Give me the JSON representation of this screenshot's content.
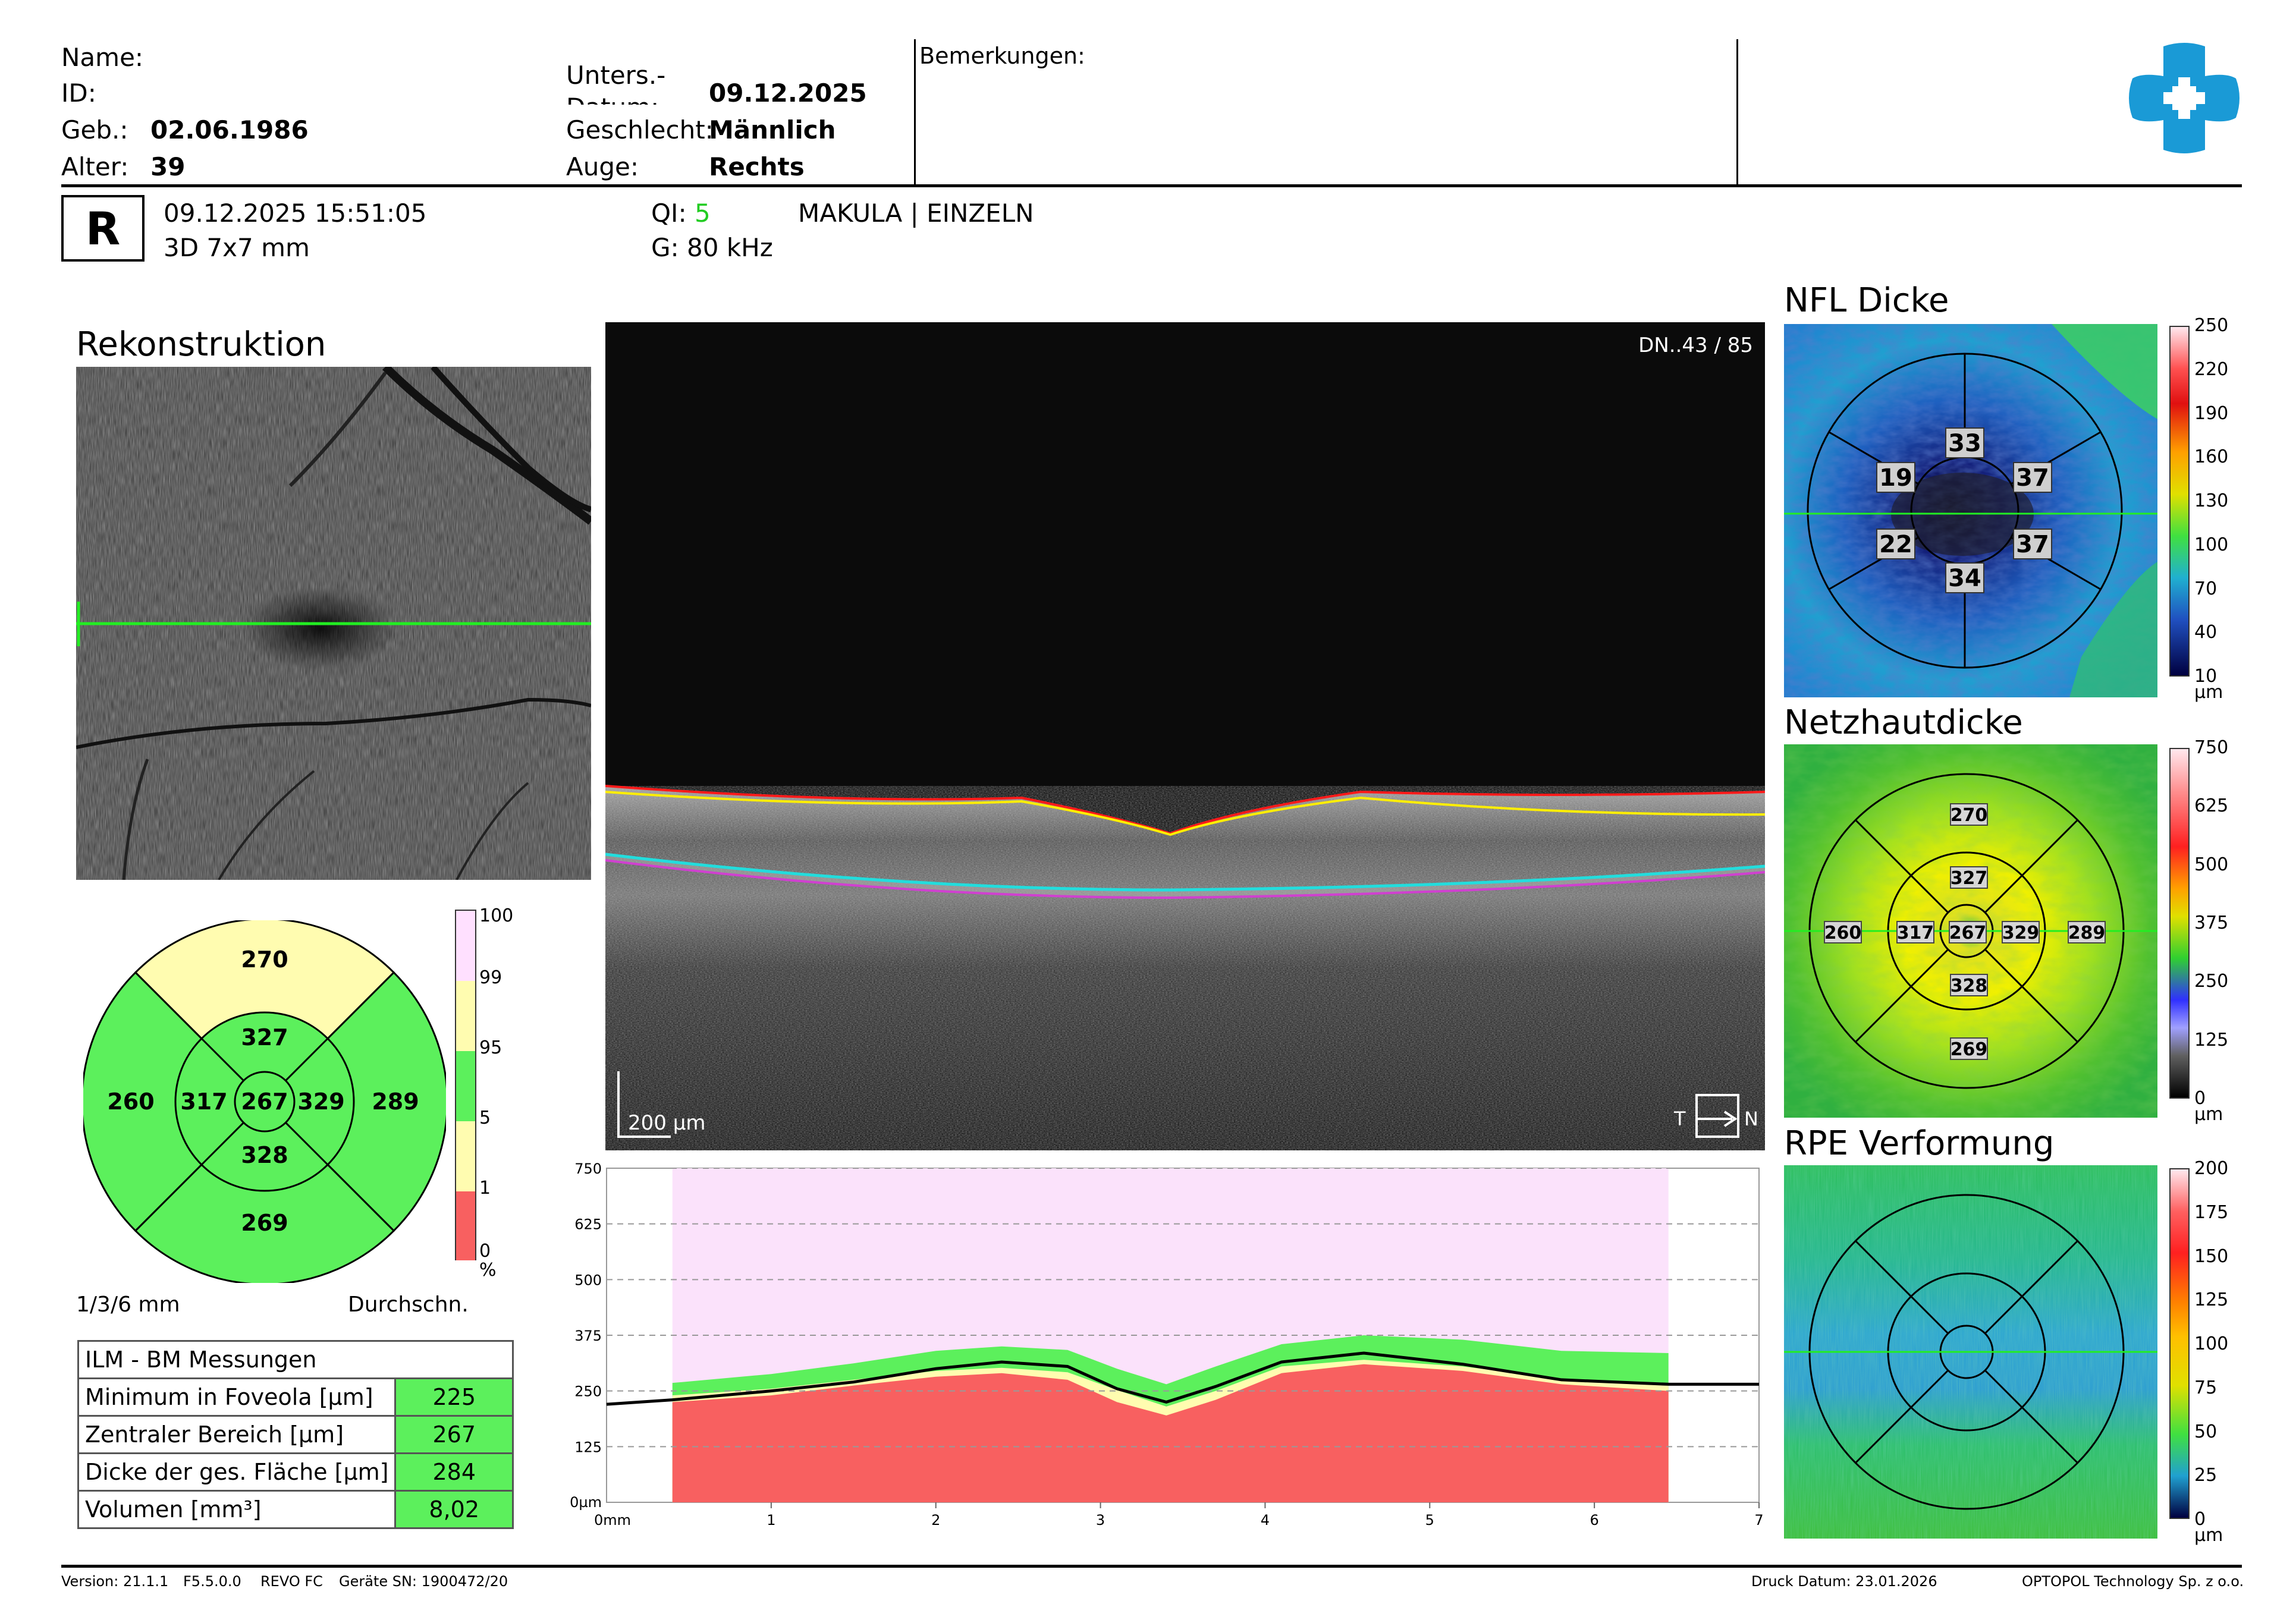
{
  "header": {
    "name_label": "Name:",
    "id_label": "ID:",
    "dob_label": "Geb.:",
    "dob_value": "02.06.1986",
    "age_label": "Alter:",
    "age_value": "39",
    "exam_label_line1": "Unters.-",
    "exam_label_line2": "Datum:",
    "exam_value": "09.12.2025",
    "sex_label": "Geschlecht:",
    "sex_value": "Männlich",
    "eye_label": "Auge:",
    "eye_value": "Rechts",
    "remarks_label": "Bemerkungen:"
  },
  "scan_info": {
    "eye_badge": "R",
    "datetime": "09.12.2025 15:51:05",
    "scan_type": "3D 7x7 mm",
    "qi_label": "QI:",
    "qi_value": "5",
    "g_value": "G: 80 kHz",
    "protocol": "MAKULA | EINZELN"
  },
  "reconstruction": {
    "title": "Rekonstruktion"
  },
  "bscan": {
    "frame_label": "DN..43 / 85",
    "scale_label": "200 µm",
    "t_label": "T",
    "n_label": "N"
  },
  "etdrs_chart": {
    "superior_outer": "270",
    "superior_inner": "327",
    "temporal_outer": "260",
    "temporal_inner": "317",
    "center": "267",
    "nasal_inner": "329",
    "nasal_outer": "289",
    "inferior_inner": "328",
    "inferior_outer": "269",
    "legend_ticks": [
      "100",
      "99",
      "95",
      "5",
      "1",
      "0"
    ],
    "legend_unit": "%",
    "diameter_label": "1/3/6 mm",
    "mode_label": "Durchschn.",
    "colors": {
      "green": "#5cf05c",
      "yellow": "#fffcb0",
      "red": "#f86060",
      "pink": "#ffe0ff"
    }
  },
  "measurements": {
    "title": "ILM - BM Messungen",
    "rows": [
      {
        "label": "Minimum in Foveola [µm]",
        "value": "225"
      },
      {
        "label": "Zentraler Bereich [µm]",
        "value": "267"
      },
      {
        "label": "Dicke der ges. Fläche [µm]",
        "value": "284"
      },
      {
        "label": "Volumen [mm³]",
        "value": "8,02"
      }
    ]
  },
  "chart_data": {
    "type": "area",
    "title": "",
    "x_unit_label": "0mm",
    "y_unit_label": "0µm",
    "xlim": [
      0,
      7
    ],
    "ylim": [
      0,
      750
    ],
    "y_ticks": [
      125,
      250,
      375,
      500,
      625,
      750
    ],
    "x_ticks": [
      1,
      2,
      3,
      4,
      5,
      6,
      7
    ],
    "norm_range_x": [
      0.4,
      6.45
    ],
    "x": [
      0,
      0.4,
      1,
      1.5,
      2,
      2.4,
      2.8,
      3.1,
      3.4,
      3.7,
      4.1,
      4.6,
      5.2,
      5.8,
      6.45,
      7
    ],
    "thickness": [
      220,
      230,
      250,
      270,
      300,
      315,
      305,
      255,
      225,
      260,
      315,
      335,
      310,
      275,
      265,
      265
    ],
    "band_red_top": [
      null,
      225,
      240,
      262,
      282,
      290,
      275,
      225,
      195,
      230,
      290,
      310,
      295,
      265,
      250,
      null
    ],
    "band_yellow_top": [
      null,
      240,
      255,
      275,
      295,
      302,
      292,
      252,
      215,
      250,
      305,
      320,
      305,
      278,
      262,
      null
    ],
    "band_green_top": [
      null,
      268,
      288,
      312,
      340,
      350,
      342,
      300,
      265,
      305,
      355,
      375,
      365,
      340,
      335,
      null
    ],
    "colors": {
      "line": "#000000",
      "green": "#5cf05c",
      "yellow": "#fffcb0",
      "red": "#f86060",
      "pink": "#fbe2fb"
    }
  },
  "nfl_map": {
    "title": "NFL Dicke",
    "values": {
      "top": "33",
      "left_upper": "19",
      "right_upper": "37",
      "left_lower": "22",
      "right_lower": "37",
      "bottom": "34"
    },
    "scale_ticks": [
      "250",
      "220",
      "190",
      "160",
      "130",
      "100",
      "70",
      "40",
      "10"
    ],
    "unit": "µm"
  },
  "retina_map": {
    "title": "Netzhautdicke",
    "values": {
      "sup_outer": "270",
      "sup_inner": "327",
      "temp_outer": "260",
      "temp_inner": "317",
      "center": "267",
      "nas_inner": "329",
      "nas_outer": "289",
      "inf_inner": "328",
      "inf_outer": "269"
    },
    "scale_ticks": [
      "750",
      "625",
      "500",
      "375",
      "250",
      "125",
      "0"
    ],
    "unit": "µm"
  },
  "rpe_map": {
    "title": "RPE Verformung",
    "scale_ticks": [
      "200",
      "175",
      "150",
      "125",
      "100",
      "75",
      "50",
      "25",
      "0"
    ],
    "unit": "µm"
  },
  "footer": {
    "version": "Version: 21.1.1",
    "firmware": "F5.5.0.0",
    "model": "REVO FC",
    "serial": "Geräte SN: 1900472/20",
    "print_date": "Druck Datum: 23.01.2026",
    "company": "OPTOPOL Technology Sp. z o.o."
  },
  "logo": {
    "name": "cross-logo",
    "color": "#1a9ad6"
  }
}
